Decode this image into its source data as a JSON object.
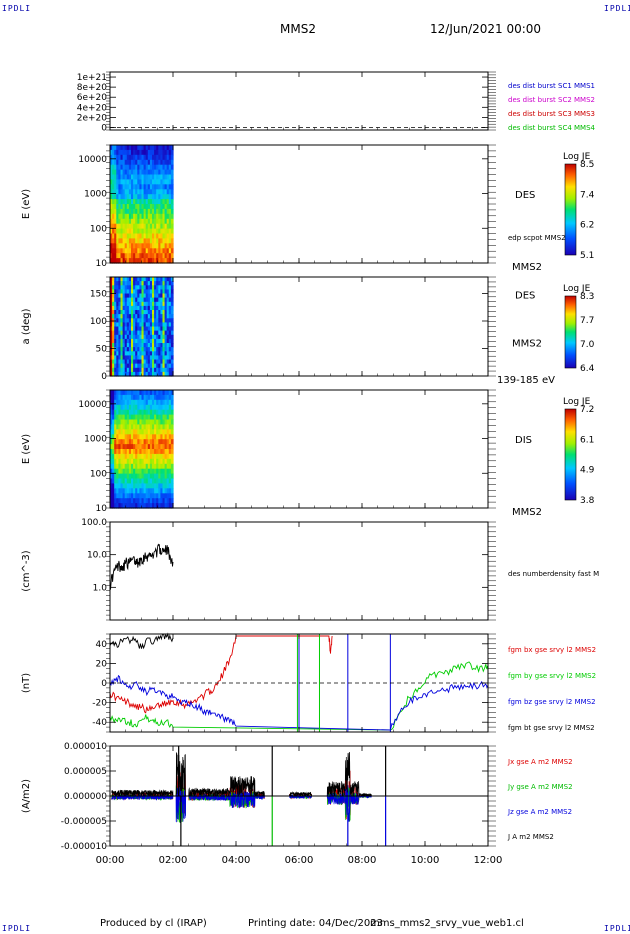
{
  "header": {
    "corner_label": "IPDLI",
    "spacecraft": "MMS2",
    "date": "12/Jun/2021 00:00"
  },
  "footer": {
    "produced": "Produced by cl (IRAP)",
    "printing": "Printing date: 04/Dec/2023",
    "file": "mms_mms2_srvy_vue_web1.cl"
  },
  "time_axis": {
    "ticks": [
      "00:00",
      "02:00",
      "04:00",
      "06:00",
      "08:00",
      "10:00",
      "12:00"
    ],
    "range_hours": [
      0,
      12
    ],
    "data_end_hours": 2.0
  },
  "chart_data": [
    {
      "type": "line",
      "id": "panel1",
      "ylabel": "",
      "ytick_labels": [
        "1e+21",
        "8e+20",
        "6e+20",
        "4e+20",
        "2e+20",
        "0"
      ],
      "ytick_values": [
        1e+21,
        8e+20,
        6e+20,
        4e+20,
        2e+20,
        0
      ],
      "ylim": [
        -5e+19,
        1.1e+21
      ],
      "dashed_zero": true,
      "legend": [
        {
          "name": "des dist burst SC1 MMS1",
          "color": "#0000cc"
        },
        {
          "name": "des dist burst SC2 MMS2",
          "color": "#cc00cc"
        },
        {
          "name": "des dist burst SC3 MMS3",
          "color": "#cc0000"
        },
        {
          "name": "des dist burst SC4 MMS4",
          "color": "#00bb00"
        }
      ]
    },
    {
      "type": "heatmap",
      "id": "panel2",
      "ylabel": "E (eV)",
      "yscale": "log",
      "ytick_labels": [
        "10000",
        "1000",
        "100",
        "10"
      ],
      "ytick_values": [
        10000,
        1000,
        100,
        10
      ],
      "ylim": [
        10,
        25000
      ],
      "x_range_hours": [
        0,
        2.0
      ],
      "label": "DES",
      "sublabel": "edp scpot MMS2",
      "bottom_label": "MMS2",
      "colorbar": {
        "title": "Log JE",
        "ticks": [
          "8.5",
          "7.4",
          "6.2",
          "5.1"
        ],
        "range": [
          5.1,
          8.5
        ]
      }
    },
    {
      "type": "heatmap",
      "id": "panel3",
      "ylabel": "a (deg)",
      "ytick_labels": [
        "150",
        "100",
        "50",
        "0"
      ],
      "ytick_values": [
        150,
        100,
        50,
        0
      ],
      "ylim": [
        0,
        180
      ],
      "x_range_hours": [
        0,
        2.0
      ],
      "label": "DES",
      "sublabel": "MMS2",
      "bottom_label": "139-185 eV",
      "colorbar": {
        "title": "Log JE",
        "ticks": [
          "8.3",
          "7.7",
          "7.0",
          "6.4"
        ],
        "range": [
          6.4,
          8.3
        ]
      }
    },
    {
      "type": "heatmap",
      "id": "panel4",
      "ylabel": "E (eV)",
      "yscale": "log",
      "ytick_labels": [
        "10000",
        "1000",
        "100",
        "10"
      ],
      "ytick_values": [
        10000,
        1000,
        100,
        10
      ],
      "ylim": [
        10,
        25000
      ],
      "x_range_hours": [
        0,
        2.0
      ],
      "label": "DIS",
      "bottom_label": "MMS2",
      "colorbar": {
        "title": "Log JE",
        "ticks": [
          "7.2",
          "6.1",
          "4.9",
          "3.8"
        ],
        "range": [
          3.8,
          7.2
        ]
      }
    },
    {
      "type": "line",
      "id": "panel5",
      "ylabel": "(cm^-3)",
      "yscale": "log",
      "ytick_labels": [
        "100.0",
        "10.0",
        "1.0"
      ],
      "ytick_values": [
        100,
        10,
        1
      ],
      "ylim": [
        0.1,
        100
      ],
      "legend": [
        {
          "name": "des numberdensity fast M",
          "color": "#000000"
        }
      ],
      "series": [
        {
          "name": "des numberdensity fast M",
          "color": "#000000",
          "x": [
            0.0,
            0.1,
            0.2,
            0.3,
            0.4,
            0.5,
            0.6,
            0.7,
            0.8,
            0.9,
            1.0,
            1.1,
            1.2,
            1.3,
            1.4,
            1.5,
            1.6,
            1.7,
            1.8,
            1.9,
            2.0
          ],
          "y": [
            1.2,
            2.5,
            4.0,
            5.0,
            4.5,
            6.0,
            5.5,
            7.0,
            6.5,
            6.0,
            8.0,
            9.0,
            10.0,
            9.0,
            12.0,
            14.0,
            16.0,
            12.0,
            15.0,
            10.0,
            6.0
          ]
        }
      ]
    },
    {
      "type": "line",
      "id": "panel6",
      "ylabel": "(nT)",
      "ytick_labels": [
        "40",
        "20",
        "0",
        "-20",
        "-40"
      ],
      "ytick_values": [
        40,
        20,
        0,
        -20,
        -40
      ],
      "ylim": [
        -50,
        50
      ],
      "dashed_zero": true,
      "series": [
        {
          "name": "fgm bx gse srvy l2 MMS2",
          "color": "#dd0000",
          "x": [
            0.0,
            0.2,
            0.4,
            0.6,
            0.8,
            1.0,
            1.2,
            1.4,
            1.6,
            1.8,
            2.0,
            2.2,
            2.4,
            2.6,
            2.8,
            3.0,
            3.2,
            3.4,
            3.6,
            3.8,
            4.0,
            6.95,
            7.0,
            7.05
          ],
          "y": [
            -10,
            -15,
            -18,
            -20,
            -22,
            -25,
            -28,
            -26,
            -22,
            -20,
            -18,
            -20,
            -22,
            -20,
            -15,
            -12,
            -8,
            -2,
            10,
            25,
            48,
            48,
            30,
            48
          ]
        },
        {
          "name": "fgm by gse srvy l2 MMS2",
          "color": "#00cc00",
          "x": [
            0.0,
            0.2,
            0.4,
            0.6,
            0.8,
            1.0,
            1.2,
            1.4,
            1.6,
            1.8,
            2.0,
            8.9,
            9.2,
            9.5,
            9.8,
            10.1,
            10.4,
            10.7,
            11.0,
            11.3,
            11.6,
            11.9,
            12.0
          ],
          "y": [
            -35,
            -38,
            -36,
            -40,
            -42,
            -38,
            -35,
            -40,
            -42,
            -38,
            -45,
            -48,
            -30,
            -15,
            -5,
            5,
            10,
            12,
            15,
            20,
            14,
            16,
            15
          ]
        },
        {
          "name": "fgm bz gse srvy l2 MMS2",
          "color": "#0000dd",
          "x": [
            0.0,
            0.2,
            0.4,
            0.6,
            0.8,
            1.0,
            1.2,
            1.4,
            1.6,
            1.8,
            2.0,
            2.2,
            2.4,
            2.6,
            2.8,
            3.0,
            3.2,
            3.4,
            3.6,
            3.8,
            4.0,
            8.9,
            9.2,
            9.5,
            9.8,
            10.1,
            10.4,
            10.7,
            11.0,
            11.3,
            11.6,
            11.9,
            12.0
          ],
          "y": [
            0,
            5,
            2,
            -5,
            0,
            -8,
            -10,
            -5,
            -8,
            -12,
            -15,
            -18,
            -20,
            -22,
            -25,
            -28,
            -32,
            -34,
            -36,
            -40,
            -44,
            -48,
            -30,
            -20,
            -15,
            -10,
            -8,
            -6,
            -5,
            -4,
            -3,
            -2,
            -2
          ]
        },
        {
          "name": "fgm bt gse srvy l2 MMS2",
          "color": "#000000",
          "x": [
            0.0,
            0.2,
            0.4,
            0.6,
            0.8,
            1.0,
            1.2,
            1.4,
            1.6,
            1.8,
            2.0
          ],
          "y": [
            38,
            40,
            42,
            44,
            45,
            35,
            46,
            42,
            48,
            47,
            46
          ]
        }
      ]
    },
    {
      "type": "line",
      "id": "panel7",
      "ylabel": "(A/m2)",
      "ytick_labels": [
        "0.000010",
        "0.000005",
        "0.000000",
        "-0.000005",
        "-0.000010"
      ],
      "ytick_values": [
        1e-05,
        5e-06,
        0,
        -5e-06,
        -1e-05
      ],
      "ylim": [
        -1e-05,
        1e-05
      ],
      "series": [
        {
          "name": "Jx gse A m2 MMS2",
          "color": "#dd0000"
        },
        {
          "name": "Jy gse A m2 MMS2",
          "color": "#00bb00"
        },
        {
          "name": "Jz gse A m2 MMS2",
          "color": "#0000dd"
        },
        {
          "name": "J A m2 MMS2",
          "color": "#000000"
        }
      ]
    }
  ]
}
